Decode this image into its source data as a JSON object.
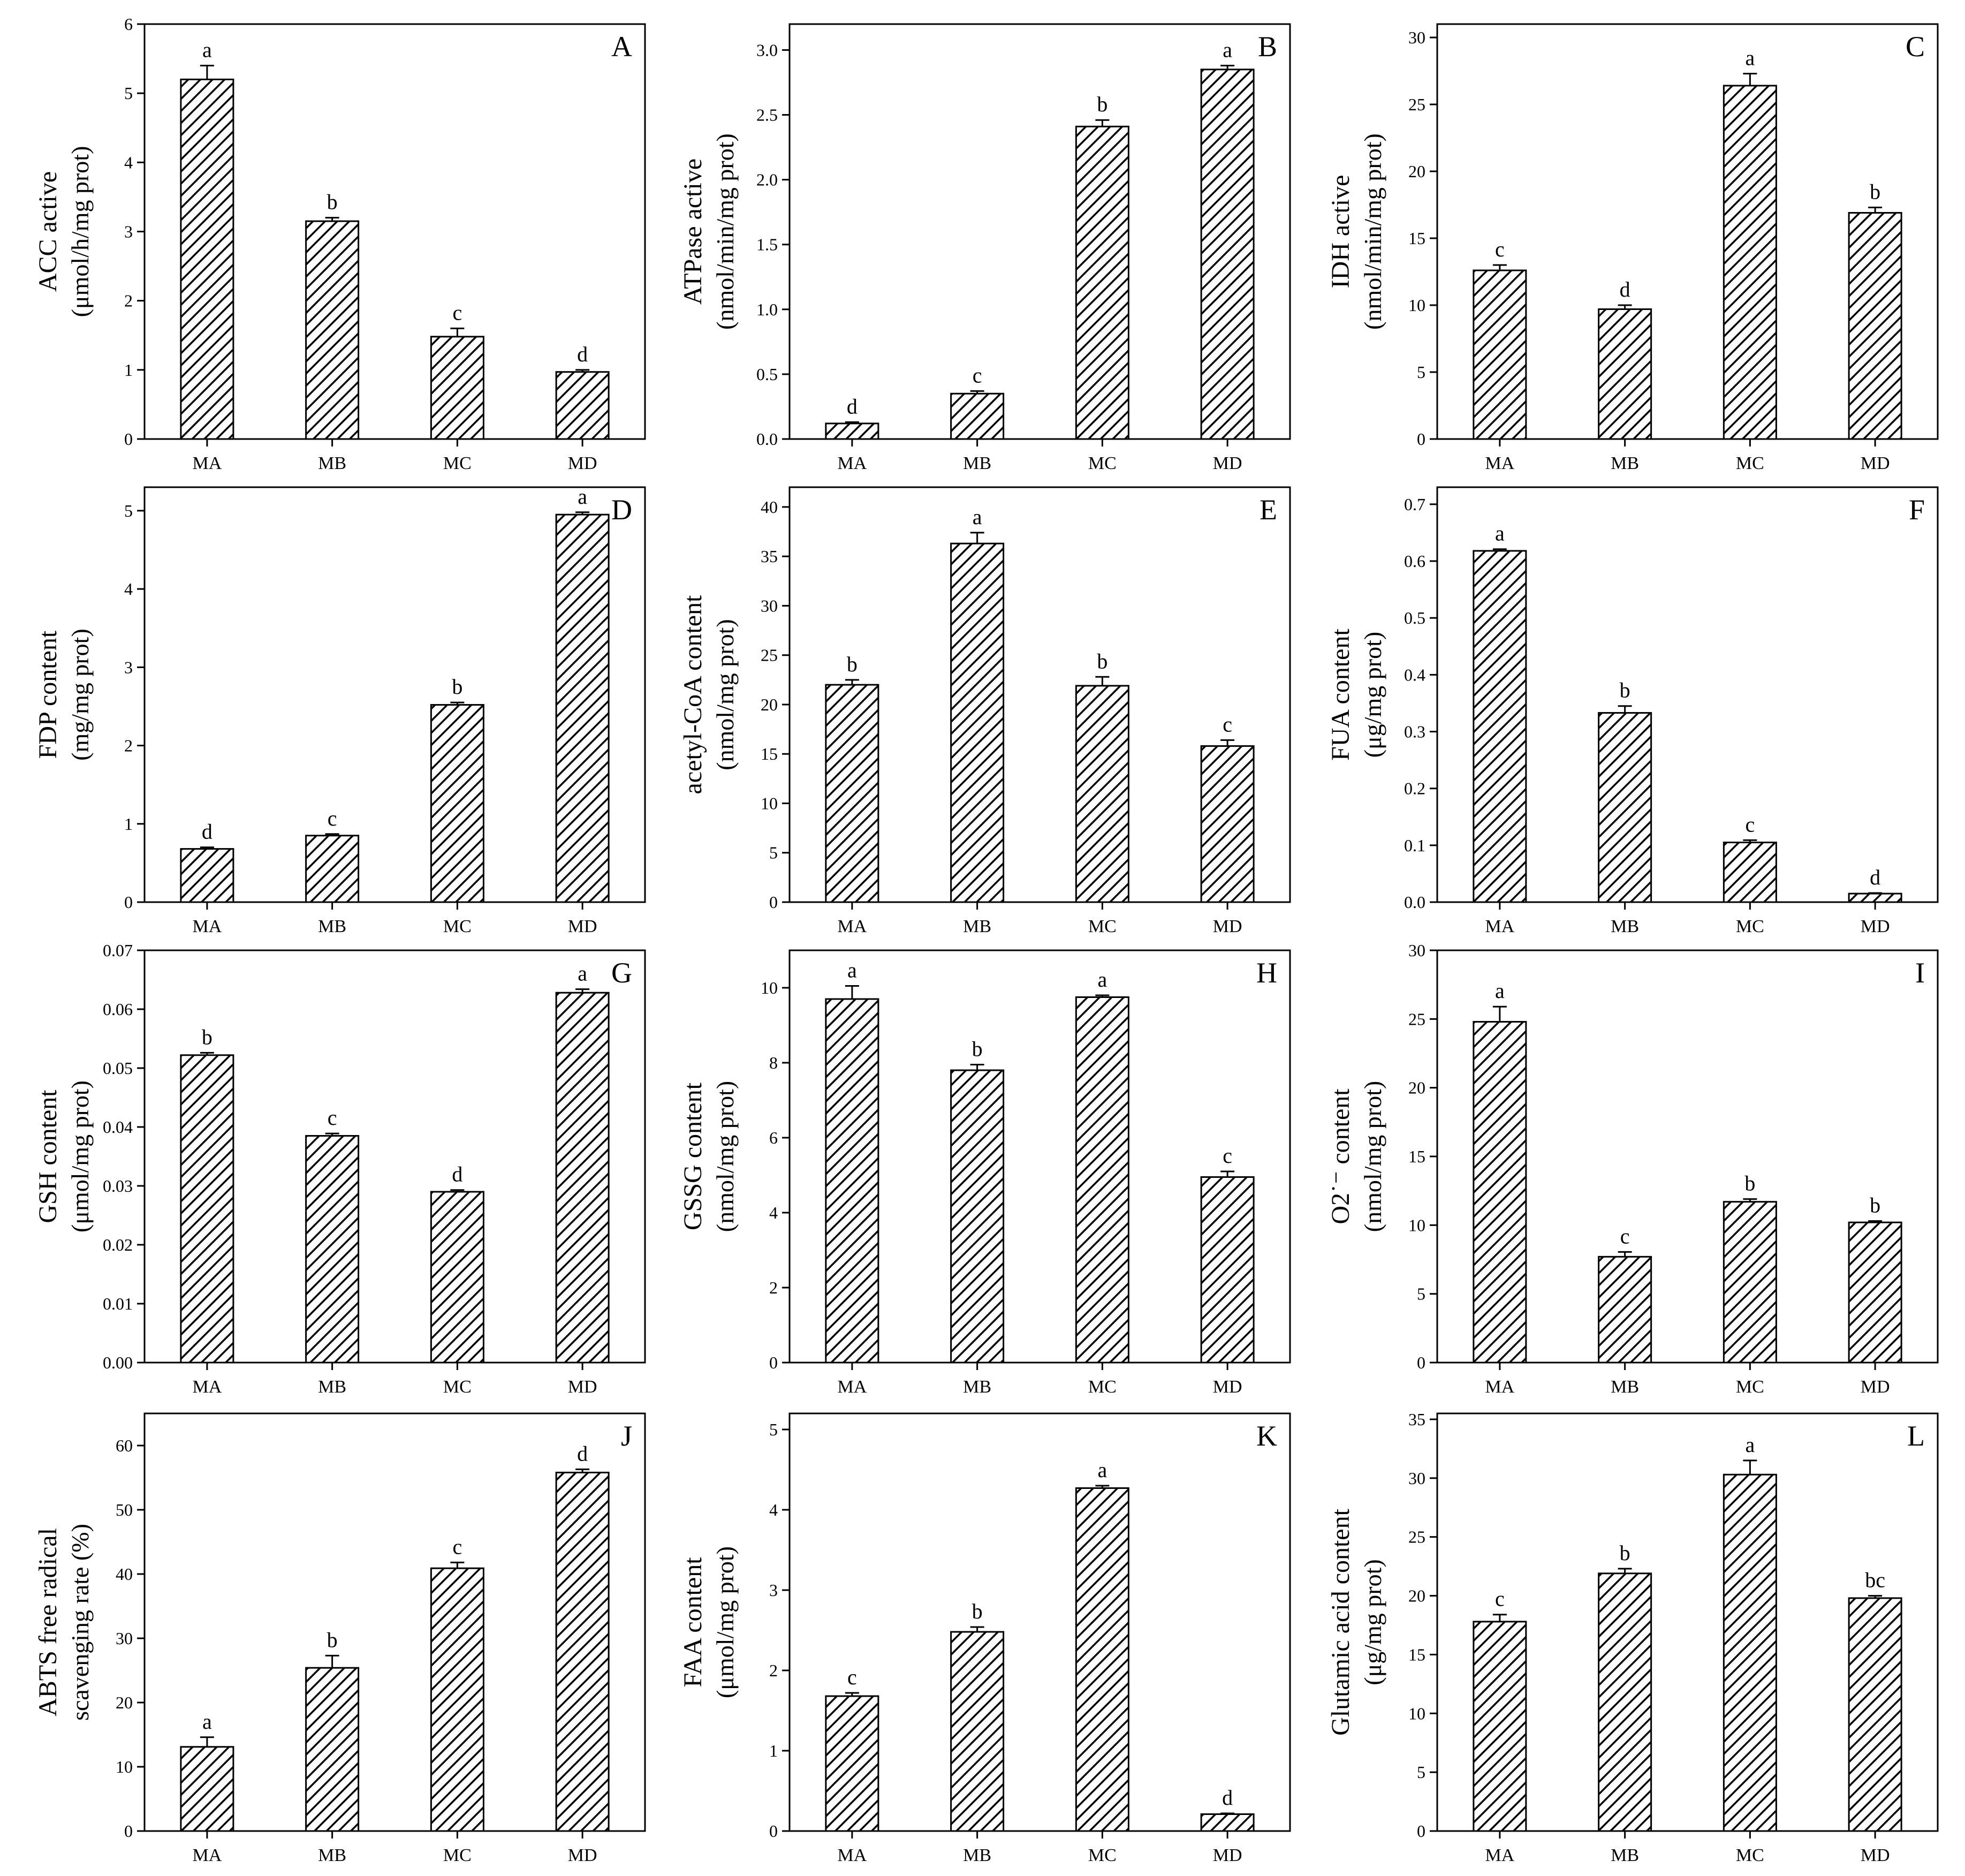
{
  "figure": {
    "title": ""
  },
  "chart_data": [
    {
      "panel_id": "A",
      "type": "bar",
      "categories": [
        "MA",
        "MB",
        "MC",
        "MD"
      ],
      "values": [
        5.2,
        3.15,
        1.48,
        0.97
      ],
      "errors": [
        0.2,
        0.05,
        0.12,
        0.03
      ],
      "letters": [
        "a",
        "b",
        "c",
        "d"
      ],
      "ylabel_lines": [
        "ACC active",
        "(μmol/h/mg prot)"
      ],
      "ylim": [
        0,
        6
      ],
      "yticks": [
        0,
        1,
        2,
        3,
        4,
        5,
        6
      ],
      "ytick_labels": [
        "0",
        "1",
        "2",
        "3",
        "4",
        "5",
        "6"
      ]
    },
    {
      "panel_id": "B",
      "type": "bar",
      "categories": [
        "MA",
        "MB",
        "MC",
        "MD"
      ],
      "values": [
        0.12,
        0.35,
        2.41,
        2.85
      ],
      "errors": [
        0.01,
        0.02,
        0.05,
        0.03
      ],
      "letters": [
        "d",
        "c",
        "b",
        "a"
      ],
      "ylabel_lines": [
        "ATPase active",
        "(nmol/min/mg prot)"
      ],
      "ylim": [
        0,
        3.2
      ],
      "yticks": [
        0,
        0.5,
        1.0,
        1.5,
        2.0,
        2.5,
        3.0
      ],
      "ytick_labels": [
        "0.0",
        "0.5",
        "1.0",
        "1.5",
        "2.0",
        "2.5",
        "3.0"
      ]
    },
    {
      "panel_id": "C",
      "type": "bar",
      "categories": [
        "MA",
        "MB",
        "MC",
        "MD"
      ],
      "values": [
        12.6,
        9.7,
        26.4,
        16.9
      ],
      "errors": [
        0.4,
        0.3,
        0.9,
        0.4
      ],
      "letters": [
        "c",
        "d",
        "a",
        "b"
      ],
      "ylabel_lines": [
        "IDH active",
        "(nmol/min/mg prot)"
      ],
      "ylim": [
        0,
        31
      ],
      "yticks": [
        0,
        5,
        10,
        15,
        20,
        25,
        30
      ],
      "ytick_labels": [
        "0",
        "5",
        "10",
        "15",
        "20",
        "25",
        "30"
      ]
    },
    {
      "panel_id": "D",
      "type": "bar",
      "categories": [
        "MA",
        "MB",
        "MC",
        "MD"
      ],
      "values": [
        0.68,
        0.85,
        2.52,
        4.95
      ],
      "errors": [
        0.02,
        0.02,
        0.03,
        0.03
      ],
      "letters": [
        "d",
        "c",
        "b",
        "a"
      ],
      "ylabel_lines": [
        "FDP content",
        "(mg/mg prot)"
      ],
      "ylim": [
        0,
        5.3
      ],
      "yticks": [
        0,
        1,
        2,
        3,
        4,
        5
      ],
      "ytick_labels": [
        "0",
        "1",
        "2",
        "3",
        "4",
        "5"
      ]
    },
    {
      "panel_id": "E",
      "type": "bar",
      "categories": [
        "MA",
        "MB",
        "MC",
        "MD"
      ],
      "values": [
        22.0,
        36.3,
        21.9,
        15.8
      ],
      "errors": [
        0.5,
        1.1,
        0.9,
        0.6
      ],
      "letters": [
        "b",
        "a",
        "b",
        "c"
      ],
      "ylabel_lines": [
        "acetyl-CoA content",
        "(nmol/mg prot)"
      ],
      "ylim": [
        0,
        42
      ],
      "yticks": [
        0,
        5,
        10,
        15,
        20,
        25,
        30,
        35,
        40
      ],
      "ytick_labels": [
        "0",
        "5",
        "10",
        "15",
        "20",
        "25",
        "30",
        "35",
        "40"
      ]
    },
    {
      "panel_id": "F",
      "type": "bar",
      "categories": [
        "MA",
        "MB",
        "MC",
        "MD"
      ],
      "values": [
        0.618,
        0.333,
        0.105,
        0.015
      ],
      "errors": [
        0.003,
        0.012,
        0.004,
        0.001
      ],
      "letters": [
        "a",
        "b",
        "c",
        "d"
      ],
      "ylabel_lines": [
        "FUA content",
        "(μg/mg prot)"
      ],
      "ylim": [
        0,
        0.73
      ],
      "yticks": [
        0,
        0.1,
        0.2,
        0.3,
        0.4,
        0.5,
        0.6,
        0.7
      ],
      "ytick_labels": [
        "0.0",
        "0.1",
        "0.2",
        "0.3",
        "0.4",
        "0.5",
        "0.6",
        "0.7"
      ]
    },
    {
      "panel_id": "G",
      "type": "bar",
      "categories": [
        "MA",
        "MB",
        "MC",
        "MD"
      ],
      "values": [
        0.0522,
        0.0385,
        0.029,
        0.0628
      ],
      "errors": [
        0.0004,
        0.0004,
        0.0003,
        0.0006
      ],
      "letters": [
        "b",
        "c",
        "d",
        "a"
      ],
      "ylabel_lines": [
        "GSH content",
        "(μmol/mg  prot)"
      ],
      "ylim": [
        0,
        0.07
      ],
      "yticks": [
        0,
        0.01,
        0.02,
        0.03,
        0.04,
        0.05,
        0.06,
        0.07
      ],
      "ytick_labels": [
        "0.00",
        "0.01",
        "0.02",
        "0.03",
        "0.04",
        "0.05",
        "0.06",
        "0.07"
      ]
    },
    {
      "panel_id": "H",
      "type": "bar",
      "categories": [
        "MA",
        "MB",
        "MC",
        "MD"
      ],
      "values": [
        9.7,
        7.8,
        9.75,
        4.95
      ],
      "errors": [
        0.35,
        0.15,
        0.05,
        0.15
      ],
      "letters": [
        "a",
        "b",
        "a",
        "c"
      ],
      "ylabel_lines": [
        "GSSG content",
        "(nmol/mg prot)"
      ],
      "ylim": [
        0,
        11
      ],
      "yticks": [
        0,
        2,
        4,
        6,
        8,
        10
      ],
      "ytick_labels": [
        "0",
        "2",
        "4",
        "6",
        "8",
        "10"
      ]
    },
    {
      "panel_id": "I",
      "type": "bar",
      "categories": [
        "MA",
        "MB",
        "MC",
        "MD"
      ],
      "values": [
        24.8,
        7.7,
        11.7,
        10.2
      ],
      "errors": [
        1.1,
        0.35,
        0.2,
        0.1
      ],
      "letters": [
        "a",
        "c",
        "b",
        "b"
      ],
      "ylabel_lines": [
        "O2˙⁻ content",
        "(nmol/mg prot)"
      ],
      "ylim": [
        0,
        30
      ],
      "yticks": [
        0,
        5,
        10,
        15,
        20,
        25,
        30
      ],
      "ytick_labels": [
        "0",
        "5",
        "10",
        "15",
        "20",
        "25",
        "30"
      ]
    },
    {
      "panel_id": "J",
      "type": "bar",
      "categories": [
        "MA",
        "MB",
        "MC",
        "MD"
      ],
      "values": [
        13.1,
        25.4,
        40.9,
        55.8
      ],
      "errors": [
        1.5,
        1.9,
        0.9,
        0.5
      ],
      "letters": [
        "a",
        "b",
        "c",
        "d"
      ],
      "ylabel_lines": [
        "ABTS free radical",
        "scavenging rate (%)"
      ],
      "ylim": [
        0,
        65
      ],
      "yticks": [
        0,
        10,
        20,
        30,
        40,
        50,
        60
      ],
      "ytick_labels": [
        "0",
        "10",
        "20",
        "30",
        "40",
        "50",
        "60"
      ]
    },
    {
      "panel_id": "K",
      "type": "bar",
      "categories": [
        "MA",
        "MB",
        "MC",
        "MD"
      ],
      "values": [
        1.68,
        2.48,
        4.27,
        0.21
      ],
      "errors": [
        0.04,
        0.06,
        0.03,
        0.01
      ],
      "letters": [
        "c",
        "b",
        "a",
        "d"
      ],
      "ylabel_lines": [
        "FAA content",
        "(μmol/mg prot)"
      ],
      "ylim": [
        0,
        5.2
      ],
      "yticks": [
        0,
        1,
        2,
        3,
        4,
        5
      ],
      "ytick_labels": [
        "0",
        "1",
        "2",
        "3",
        "4",
        "5"
      ]
    },
    {
      "panel_id": "L",
      "type": "bar",
      "categories": [
        "MA",
        "MB",
        "MC",
        "MD"
      ],
      "values": [
        17.8,
        21.9,
        30.3,
        19.8
      ],
      "errors": [
        0.6,
        0.4,
        1.2,
        0.2
      ],
      "letters": [
        "c",
        "b",
        "a",
        "bc"
      ],
      "ylabel_lines": [
        "Glutamic acid content",
        "(μg/mg  prot)"
      ],
      "ylim": [
        0,
        35.5
      ],
      "yticks": [
        0,
        5,
        10,
        15,
        20,
        25,
        30,
        35
      ],
      "ytick_labels": [
        "0",
        "5",
        "10",
        "15",
        "20",
        "25",
        "30",
        "35"
      ]
    }
  ]
}
